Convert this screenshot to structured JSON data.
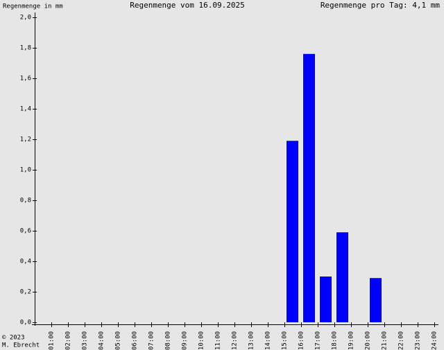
{
  "chart_data": {
    "type": "bar",
    "title": "Regenmenge vom 16.09.2025",
    "y_label": "Regenmenge in mm",
    "subtitle": "Regenmenge pro Tag: 4,1 mm",
    "credit": [
      "© 2023",
      "M. Ebrecht"
    ],
    "categories": [
      "01:00",
      "02:00",
      "03:00",
      "04:00",
      "05:00",
      "06:00",
      "07:00",
      "08:00",
      "09:00",
      "10:00",
      "11:00",
      "12:00",
      "13:00",
      "14:00",
      "15:00",
      "16:00",
      "17:00",
      "18:00",
      "19:00",
      "20:00",
      "21:00",
      "22:00",
      "23:00",
      "24:00"
    ],
    "values": [
      0,
      0,
      0,
      0,
      0,
      0,
      0,
      0,
      0,
      0,
      0,
      0,
      0,
      0,
      0,
      1.19,
      1.76,
      0.3,
      0.59,
      0,
      0.29,
      0,
      0,
      0
    ],
    "color": "#0000ff",
    "ylim": [
      0,
      2
    ],
    "yticks": [
      {
        "value": 0,
        "label": "0,0"
      },
      {
        "value": 0.2,
        "label": "0,2"
      },
      {
        "value": 0.4,
        "label": "0,4"
      },
      {
        "value": 0.6,
        "label": "0,6"
      },
      {
        "value": 0.8,
        "label": "0,8"
      },
      {
        "value": 1,
        "label": "1,0"
      },
      {
        "value": 1.2,
        "label": "1,2"
      },
      {
        "value": 1.4,
        "label": "1,4"
      },
      {
        "value": 1.6,
        "label": "1,6"
      },
      {
        "value": 1.8,
        "label": "1,8"
      },
      {
        "value": 2,
        "label": "2,0"
      }
    ]
  }
}
